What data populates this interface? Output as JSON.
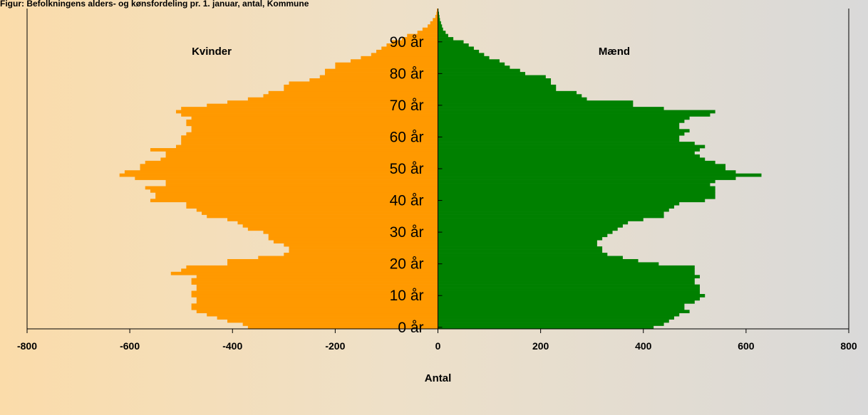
{
  "chart_data": {
    "type": "bar",
    "orientation": "horizontal-population-pyramid",
    "title": "Figur: Befolkningens alders- og kønsfordeling pr. 1. januar, antal, Kommune",
    "xlabel": "Antal",
    "ylabel": "",
    "xlim": [
      -800,
      800
    ],
    "x_ticks": [
      -800,
      -600,
      -400,
      -200,
      0,
      200,
      400,
      600,
      800
    ],
    "x_tick_labels": [
      "-800",
      "-600",
      "-400",
      "-200",
      "0",
      "200",
      "400",
      "600",
      "800"
    ],
    "y_ticks": [
      0,
      10,
      20,
      30,
      40,
      50,
      60,
      70,
      80,
      90
    ],
    "y_tick_labels": [
      "0 år",
      "10 år",
      "20 år",
      "30 år",
      "40 år",
      "50 år",
      "60 år",
      "70 år",
      "80 år",
      "90 år"
    ],
    "ages": [
      0,
      1,
      2,
      3,
      4,
      5,
      6,
      7,
      8,
      9,
      10,
      11,
      12,
      13,
      14,
      15,
      16,
      17,
      18,
      19,
      20,
      21,
      22,
      23,
      24,
      25,
      26,
      27,
      28,
      29,
      30,
      31,
      32,
      33,
      34,
      35,
      36,
      37,
      38,
      39,
      40,
      41,
      42,
      43,
      44,
      45,
      46,
      47,
      48,
      49,
      50,
      51,
      52,
      53,
      54,
      55,
      56,
      57,
      58,
      59,
      60,
      61,
      62,
      63,
      64,
      65,
      66,
      67,
      68,
      69,
      70,
      71,
      72,
      73,
      74,
      75,
      76,
      77,
      78,
      79,
      80,
      81,
      82,
      83,
      84,
      85,
      86,
      87,
      88,
      89,
      90,
      91,
      92,
      93,
      94,
      95,
      96,
      97,
      98,
      99,
      100
    ],
    "series": [
      {
        "name": "Kvinder",
        "color": "#ff9900",
        "values": [
          -370,
          -380,
          -410,
          -430,
          -450,
          -470,
          -480,
          -480,
          -470,
          -470,
          -480,
          -480,
          -470,
          -470,
          -480,
          -480,
          -470,
          -520,
          -500,
          -490,
          -410,
          -410,
          -350,
          -300,
          -290,
          -290,
          -300,
          -320,
          -330,
          -330,
          -340,
          -370,
          -380,
          -390,
          -410,
          -450,
          -460,
          -470,
          -490,
          -490,
          -560,
          -550,
          -550,
          -560,
          -570,
          -530,
          -530,
          -590,
          -620,
          -610,
          -580,
          -580,
          -570,
          -540,
          -530,
          -530,
          -560,
          -510,
          -500,
          -500,
          -500,
          -490,
          -480,
          -480,
          -490,
          -490,
          -480,
          -500,
          -510,
          -500,
          -450,
          -410,
          -370,
          -340,
          -330,
          -300,
          -300,
          -290,
          -250,
          -230,
          -220,
          -220,
          -200,
          -200,
          -170,
          -150,
          -130,
          -120,
          -110,
          -100,
          -90,
          -70,
          -60,
          -40,
          -30,
          -20,
          -15,
          -10,
          -5,
          -3,
          -2
        ],
        "bar_colors_note": "orange"
      },
      {
        "name": "Mænd",
        "color": "#008000",
        "values": [
          420,
          440,
          450,
          460,
          470,
          490,
          480,
          480,
          500,
          510,
          520,
          510,
          510,
          510,
          500,
          500,
          510,
          500,
          500,
          500,
          430,
          390,
          360,
          330,
          320,
          320,
          310,
          310,
          320,
          330,
          340,
          350,
          360,
          370,
          400,
          440,
          440,
          450,
          460,
          470,
          520,
          540,
          540,
          540,
          540,
          530,
          540,
          580,
          630,
          580,
          560,
          560,
          540,
          520,
          510,
          500,
          510,
          520,
          500,
          470,
          470,
          480,
          490,
          470,
          470,
          480,
          490,
          530,
          540,
          440,
          380,
          380,
          290,
          280,
          270,
          230,
          230,
          220,
          220,
          210,
          170,
          160,
          140,
          130,
          120,
          100,
          90,
          80,
          70,
          60,
          50,
          30,
          20,
          15,
          10,
          8,
          6,
          4,
          3,
          2,
          1
        ]
      }
    ],
    "series_labels": {
      "left": "Kvinder",
      "right": "Mænd"
    },
    "grid": false,
    "legend": "none"
  }
}
